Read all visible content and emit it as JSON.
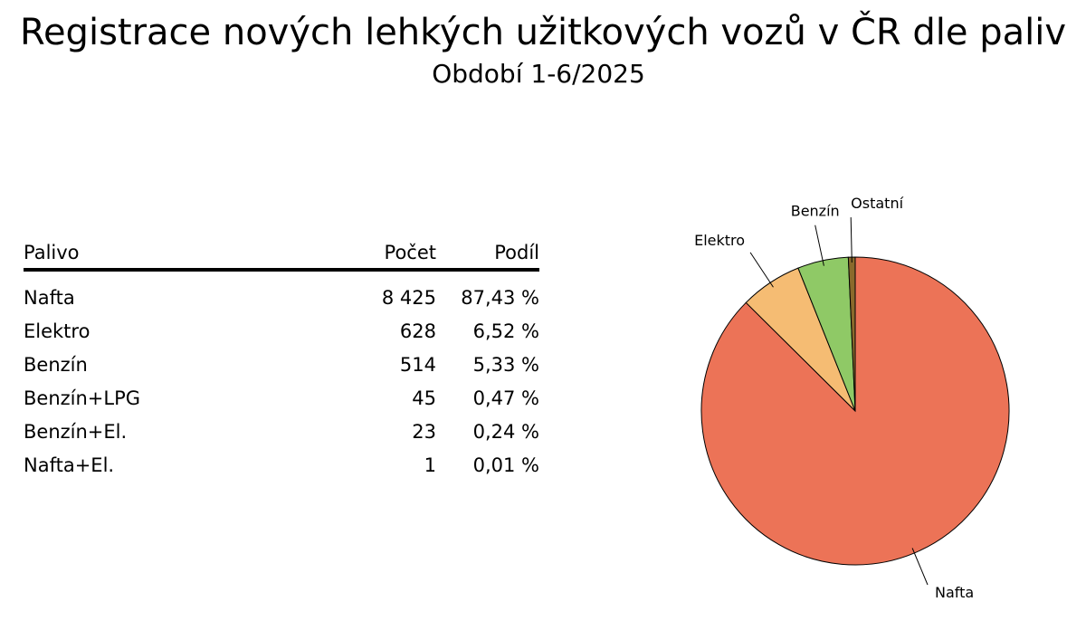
{
  "header": {
    "title": "Registrace nových lehkých užitkových vozů v ČR dle paliv",
    "subtitle": "Období 1-6/2025"
  },
  "table": {
    "headers": {
      "name": "Palivo",
      "count": "Počet",
      "share": "Podíl"
    },
    "rows": [
      {
        "name": "Nafta",
        "count": "8 425",
        "share": "87,43 %"
      },
      {
        "name": "Elektro",
        "count": "628",
        "share": "6,52 %"
      },
      {
        "name": "Benzín",
        "count": "514",
        "share": "5,33 %"
      },
      {
        "name": "Benzín+LPG",
        "count": "45",
        "share": "0,47 %"
      },
      {
        "name": "Benzín+El.",
        "count": "23",
        "share": "0,24 %"
      },
      {
        "name": "Nafta+El.",
        "count": "1",
        "share": "0,01 %"
      }
    ]
  },
  "chart_data": {
    "type": "pie",
    "title": "",
    "slices": [
      {
        "label": "Nafta",
        "value": 8425,
        "color": "#ec7357"
      },
      {
        "label": "Elektro",
        "value": 628,
        "color": "#f5bc73"
      },
      {
        "label": "Benzín",
        "value": 514,
        "color": "#8fc966"
      },
      {
        "label": "Ostatní",
        "value": 69,
        "color": "#8a6a2c"
      }
    ],
    "start": "12 o'clock",
    "direction": "clockwise",
    "legend": "none"
  }
}
